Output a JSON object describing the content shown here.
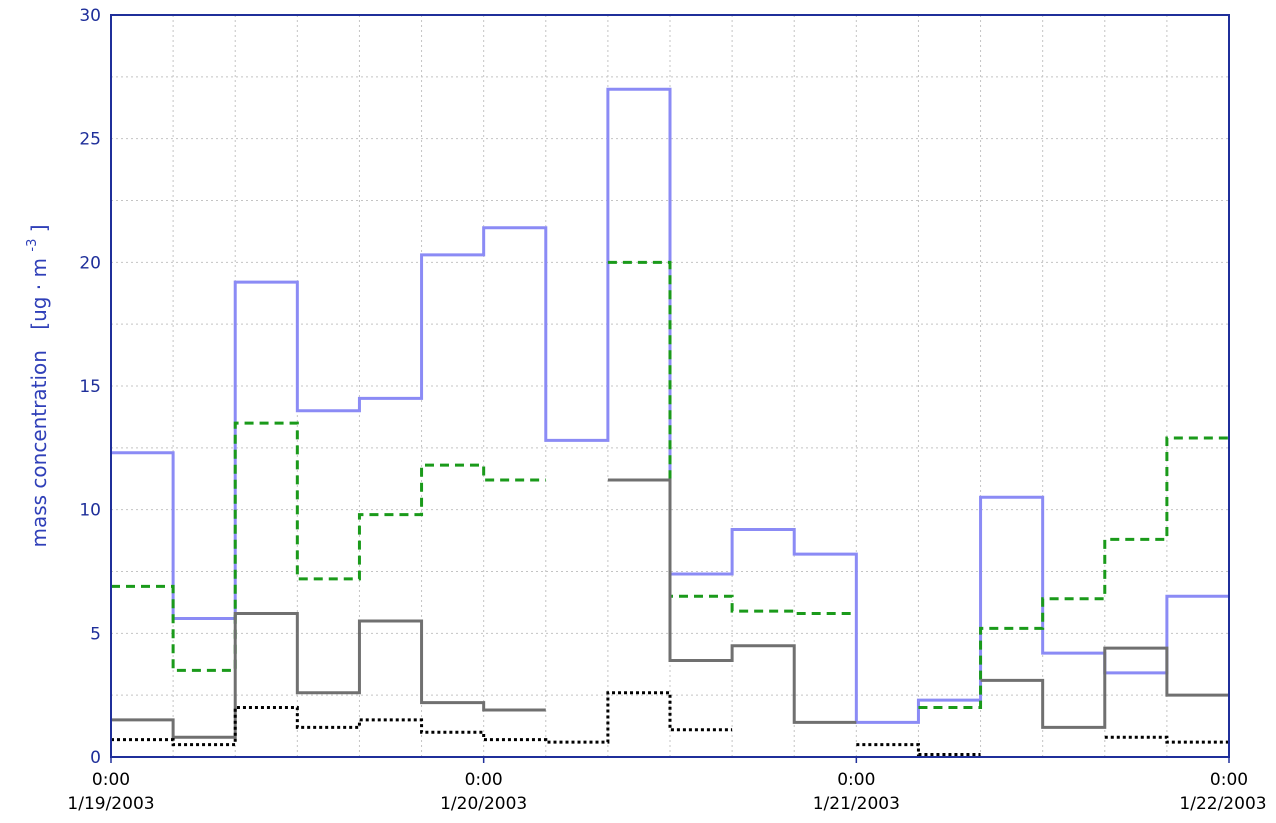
{
  "chart_data": {
    "type": "line",
    "step": true,
    "title": "",
    "ylabel": {
      "main": "mass concentration",
      "unit_prefix": "[ug · m",
      "unit_exponent": "-3",
      "unit_suffix": "]"
    },
    "xlabel": "",
    "ylim": [
      0,
      30
    ],
    "yticks": [
      "0",
      "5",
      "10",
      "15",
      "20",
      "25",
      "30"
    ],
    "xlim": [
      "2003-01-19 00:00",
      "2003-01-22 00:00"
    ],
    "xticks": [
      {
        "time": "0:00",
        "date": "1/19/2003"
      },
      {
        "time": "0:00",
        "date": "1/20/2003"
      },
      {
        "time": "0:00",
        "date": "1/21/2003"
      },
      {
        "time": "0:00",
        "date": "1/22/2003"
      }
    ],
    "grid": true,
    "interval_hours": 4,
    "intervals_start": [
      "1/19/2003 0:00",
      "1/19/2003 4:00",
      "1/19/2003 8:00",
      "1/19/2003 12:00",
      "1/19/2003 16:00",
      "1/19/2003 20:00",
      "1/20/2003 0:00",
      "1/20/2003 4:00",
      "1/20/2003 8:00",
      "1/20/2003 12:00",
      "1/20/2003 16:00",
      "1/20/2003 20:00",
      "1/21/2003 0:00",
      "1/21/2003 4:00",
      "1/21/2003 8:00",
      "1/21/2003 12:00",
      "1/21/2003 16:00",
      "1/21/2003 20:00"
    ],
    "series": [
      {
        "color": "#8b8bf5",
        "dash": "solid",
        "values": [
          12.3,
          5.6,
          19.2,
          14.0,
          14.5,
          20.3,
          21.4,
          12.8,
          27.0,
          7.4,
          9.2,
          8.2,
          1.4,
          2.3,
          10.5,
          4.2,
          3.4,
          6.5
        ]
      },
      {
        "color": "#1a9a1a",
        "dash": "dashed",
        "values": [
          6.9,
          3.5,
          13.5,
          7.2,
          9.8,
          11.8,
          11.2,
          null,
          20.0,
          6.5,
          5.9,
          5.8,
          null,
          2.0,
          5.2,
          6.4,
          8.8,
          12.9
        ]
      },
      {
        "color": "#707070",
        "dash": "solid",
        "values": [
          1.5,
          0.8,
          5.8,
          2.6,
          5.5,
          2.2,
          1.9,
          null,
          11.2,
          3.9,
          4.5,
          1.4,
          null,
          null,
          3.1,
          1.2,
          4.4,
          2.5
        ]
      },
      {
        "color": "#000000",
        "dash": "dotted",
        "values": [
          0.7,
          0.5,
          2.0,
          1.2,
          1.5,
          1.0,
          0.7,
          0.6,
          2.6,
          1.1,
          null,
          null,
          0.5,
          0.1,
          null,
          null,
          0.8,
          0.6
        ]
      }
    ]
  }
}
